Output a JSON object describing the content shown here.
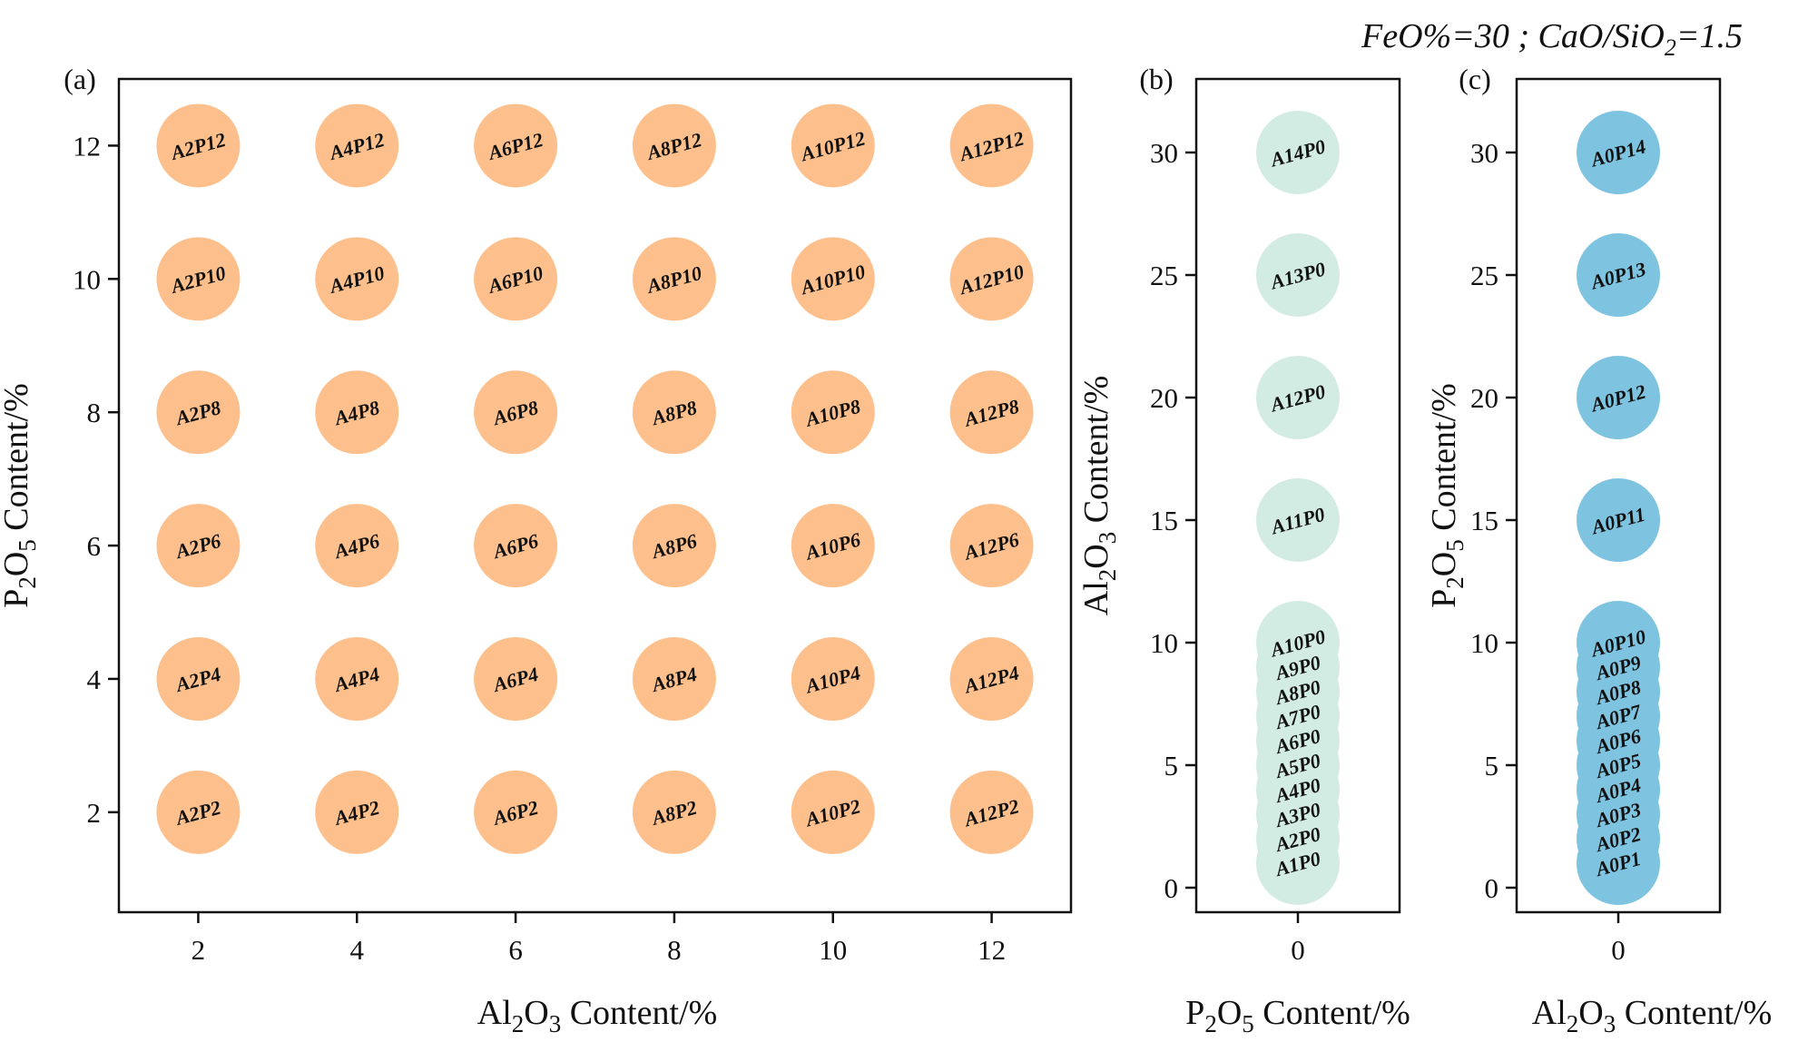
{
  "annotation": {
    "pre": "FeO%=30 ; CaO/SiO",
    "sub": "2",
    "post": "=1.5"
  },
  "colors": {
    "a": "#fdc08c",
    "b": "#d3ece3",
    "c": "#7ec3e0"
  },
  "chart_data": [
    {
      "type": "scatter",
      "panel_label": "(a)",
      "xlabel": {
        "pre": "Al",
        "s1": "2",
        "mid": "O",
        "s2": "3",
        "post": " Content/%"
      },
      "ylabel": {
        "pre": "P",
        "s1": "2",
        "mid": "O",
        "s2": "5",
        "post": " Content/%"
      },
      "xlim": [
        1,
        13
      ],
      "ylim": [
        0.5,
        13
      ],
      "xticks": [
        2,
        4,
        6,
        8,
        10,
        12
      ],
      "yticks": [
        2,
        4,
        6,
        8,
        10,
        12
      ],
      "points": [
        {
          "x": 2,
          "y": 12,
          "label": "A2P12"
        },
        {
          "x": 4,
          "y": 12,
          "label": "A4P12"
        },
        {
          "x": 6,
          "y": 12,
          "label": "A6P12"
        },
        {
          "x": 8,
          "y": 12,
          "label": "A8P12"
        },
        {
          "x": 10,
          "y": 12,
          "label": "A10P12"
        },
        {
          "x": 12,
          "y": 12,
          "label": "A12P12"
        },
        {
          "x": 2,
          "y": 10,
          "label": "A2P10"
        },
        {
          "x": 4,
          "y": 10,
          "label": "A4P10"
        },
        {
          "x": 6,
          "y": 10,
          "label": "A6P10"
        },
        {
          "x": 8,
          "y": 10,
          "label": "A8P10"
        },
        {
          "x": 10,
          "y": 10,
          "label": "A10P10"
        },
        {
          "x": 12,
          "y": 10,
          "label": "A12P10"
        },
        {
          "x": 2,
          "y": 8,
          "label": "A2P8"
        },
        {
          "x": 4,
          "y": 8,
          "label": "A4P8"
        },
        {
          "x": 6,
          "y": 8,
          "label": "A6P8"
        },
        {
          "x": 8,
          "y": 8,
          "label": "A8P8"
        },
        {
          "x": 10,
          "y": 8,
          "label": "A10P8"
        },
        {
          "x": 12,
          "y": 8,
          "label": "A12P8"
        },
        {
          "x": 2,
          "y": 6,
          "label": "A2P6"
        },
        {
          "x": 4,
          "y": 6,
          "label": "A4P6"
        },
        {
          "x": 6,
          "y": 6,
          "label": "A6P6"
        },
        {
          "x": 8,
          "y": 6,
          "label": "A8P6"
        },
        {
          "x": 10,
          "y": 6,
          "label": "A10P6"
        },
        {
          "x": 12,
          "y": 6,
          "label": "A12P6"
        },
        {
          "x": 2,
          "y": 4,
          "label": "A2P4"
        },
        {
          "x": 4,
          "y": 4,
          "label": "A4P4"
        },
        {
          "x": 6,
          "y": 4,
          "label": "A6P4"
        },
        {
          "x": 8,
          "y": 4,
          "label": "A8P4"
        },
        {
          "x": 10,
          "y": 4,
          "label": "A10P4"
        },
        {
          "x": 12,
          "y": 4,
          "label": "A12P4"
        },
        {
          "x": 2,
          "y": 2,
          "label": "A2P2"
        },
        {
          "x": 4,
          "y": 2,
          "label": "A4P2"
        },
        {
          "x": 6,
          "y": 2,
          "label": "A6P2"
        },
        {
          "x": 8,
          "y": 2,
          "label": "A8P2"
        },
        {
          "x": 10,
          "y": 2,
          "label": "A10P2"
        },
        {
          "x": 12,
          "y": 2,
          "label": "A12P2"
        }
      ]
    },
    {
      "type": "scatter",
      "panel_label": "(b)",
      "xlabel": {
        "pre": "P",
        "s1": "2",
        "mid": "O",
        "s2": "5",
        "post": " Content/%"
      },
      "ylabel": {
        "pre": "Al",
        "s1": "2",
        "mid": "O",
        "s2": "3",
        "post": " Content/%"
      },
      "xlim": [
        -1,
        1
      ],
      "ylim": [
        -1,
        33
      ],
      "xticks": [
        0
      ],
      "yticks": [
        0,
        5,
        10,
        15,
        20,
        25,
        30
      ],
      "points": [
        {
          "x": 0,
          "y": 30,
          "label": "A14P0"
        },
        {
          "x": 0,
          "y": 25,
          "label": "A13P0"
        },
        {
          "x": 0,
          "y": 20,
          "label": "A12P0"
        },
        {
          "x": 0,
          "y": 15,
          "label": "A11P0"
        },
        {
          "x": 0,
          "y": 10,
          "label": "A10P0"
        },
        {
          "x": 0,
          "y": 9,
          "label": "A9P0"
        },
        {
          "x": 0,
          "y": 8,
          "label": "A8P0"
        },
        {
          "x": 0,
          "y": 7,
          "label": "A7P0"
        },
        {
          "x": 0,
          "y": 6,
          "label": "A6P0"
        },
        {
          "x": 0,
          "y": 5,
          "label": "A5P0"
        },
        {
          "x": 0,
          "y": 4,
          "label": "A4P0"
        },
        {
          "x": 0,
          "y": 3,
          "label": "A3P0"
        },
        {
          "x": 0,
          "y": 2,
          "label": "A2P0"
        },
        {
          "x": 0,
          "y": 1,
          "label": "A1P0"
        }
      ]
    },
    {
      "type": "scatter",
      "panel_label": "(c)",
      "xlabel": {
        "pre": "Al",
        "s1": "2",
        "mid": "O",
        "s2": "3",
        "post": " Content/%"
      },
      "ylabel": {
        "pre": "P",
        "s1": "2",
        "mid": "O",
        "s2": "5",
        "post": " Content/%"
      },
      "xlim": [
        -1,
        1
      ],
      "ylim": [
        -1,
        33
      ],
      "xticks": [
        0
      ],
      "yticks": [
        0,
        5,
        10,
        15,
        20,
        25,
        30
      ],
      "points": [
        {
          "x": 0,
          "y": 30,
          "label": "A0P14"
        },
        {
          "x": 0,
          "y": 25,
          "label": "A0P13"
        },
        {
          "x": 0,
          "y": 20,
          "label": "A0P12"
        },
        {
          "x": 0,
          "y": 15,
          "label": "A0P11"
        },
        {
          "x": 0,
          "y": 10,
          "label": "A0P10"
        },
        {
          "x": 0,
          "y": 9,
          "label": "A0P9"
        },
        {
          "x": 0,
          "y": 8,
          "label": "A0P8"
        },
        {
          "x": 0,
          "y": 7,
          "label": "A0P7"
        },
        {
          "x": 0,
          "y": 6,
          "label": "A0P6"
        },
        {
          "x": 0,
          "y": 5,
          "label": "A0P5"
        },
        {
          "x": 0,
          "y": 4,
          "label": "A0P4"
        },
        {
          "x": 0,
          "y": 3,
          "label": "A0P3"
        },
        {
          "x": 0,
          "y": 2,
          "label": "A0P2"
        },
        {
          "x": 0,
          "y": 1,
          "label": "A0P1"
        }
      ]
    }
  ]
}
